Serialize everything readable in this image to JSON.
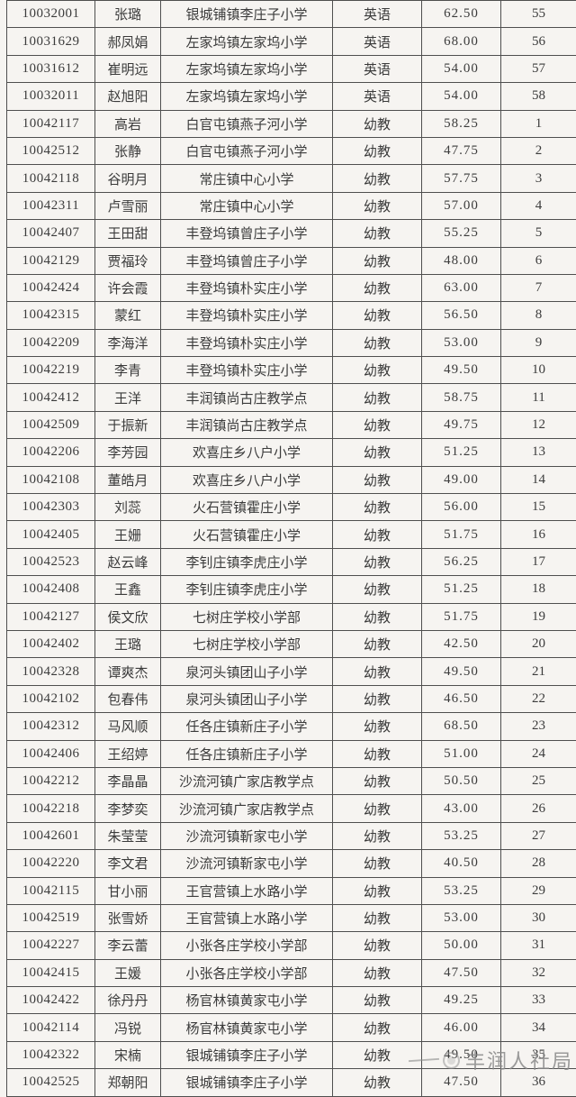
{
  "colors": {
    "background": "#f6f4f1",
    "border": "#4f4f4f",
    "text": "#3b3b3b",
    "watermark": "#8a8a8a"
  },
  "watermark": {
    "text": "丰润人社局",
    "logo": "emblem-icon"
  },
  "table": {
    "column_fields": [
      "exam_number",
      "name",
      "school",
      "subject",
      "score",
      "rank"
    ],
    "rows": [
      [
        "10032001",
        "张璐",
        "银城铺镇李庄子小学",
        "英语",
        "62.50",
        "55"
      ],
      [
        "10031629",
        "郝凤娟",
        "左家坞镇左家坞小学",
        "英语",
        "68.00",
        "56"
      ],
      [
        "10031612",
        "崔明远",
        "左家坞镇左家坞小学",
        "英语",
        "54.00",
        "57"
      ],
      [
        "10032011",
        "赵旭阳",
        "左家坞镇左家坞小学",
        "英语",
        "54.00",
        "58"
      ],
      [
        "10042117",
        "高岩",
        "白官屯镇燕子河小学",
        "幼教",
        "58.25",
        "1"
      ],
      [
        "10042512",
        "张静",
        "白官屯镇燕子河小学",
        "幼教",
        "47.75",
        "2"
      ],
      [
        "10042118",
        "谷明月",
        "常庄镇中心小学",
        "幼教",
        "57.75",
        "3"
      ],
      [
        "10042311",
        "卢雪丽",
        "常庄镇中心小学",
        "幼教",
        "57.00",
        "4"
      ],
      [
        "10042407",
        "王田甜",
        "丰登坞镇曾庄子小学",
        "幼教",
        "55.25",
        "5"
      ],
      [
        "10042129",
        "贾福玲",
        "丰登坞镇曾庄子小学",
        "幼教",
        "48.00",
        "6"
      ],
      [
        "10042424",
        "许会霞",
        "丰登坞镇朴实庄小学",
        "幼教",
        "63.00",
        "7"
      ],
      [
        "10042315",
        "蒙红",
        "丰登坞镇朴实庄小学",
        "幼教",
        "56.50",
        "8"
      ],
      [
        "10042209",
        "李海洋",
        "丰登坞镇朴实庄小学",
        "幼教",
        "53.00",
        "9"
      ],
      [
        "10042219",
        "李青",
        "丰登坞镇朴实庄小学",
        "幼教",
        "49.50",
        "10"
      ],
      [
        "10042412",
        "王洋",
        "丰润镇尚古庄教学点",
        "幼教",
        "58.75",
        "11"
      ],
      [
        "10042509",
        "于振新",
        "丰润镇尚古庄教学点",
        "幼教",
        "49.75",
        "12"
      ],
      [
        "10042206",
        "李芳园",
        "欢喜庄乡八户小学",
        "幼教",
        "51.25",
        "13"
      ],
      [
        "10042108",
        "董皓月",
        "欢喜庄乡八户小学",
        "幼教",
        "49.00",
        "14"
      ],
      [
        "10042303",
        "刘蕊",
        "火石营镇霍庄小学",
        "幼教",
        "56.00",
        "15"
      ],
      [
        "10042405",
        "王姗",
        "火石营镇霍庄小学",
        "幼教",
        "51.75",
        "16"
      ],
      [
        "10042523",
        "赵云峰",
        "李钊庄镇李虎庄小学",
        "幼教",
        "56.25",
        "17"
      ],
      [
        "10042408",
        "王鑫",
        "李钊庄镇李虎庄小学",
        "幼教",
        "51.25",
        "18"
      ],
      [
        "10042127",
        "侯文欣",
        "七树庄学校小学部",
        "幼教",
        "51.75",
        "19"
      ],
      [
        "10042402",
        "王璐",
        "七树庄学校小学部",
        "幼教",
        "42.50",
        "20"
      ],
      [
        "10042328",
        "谭爽杰",
        "泉河头镇团山子小学",
        "幼教",
        "49.50",
        "21"
      ],
      [
        "10042102",
        "包春伟",
        "泉河头镇团山子小学",
        "幼教",
        "46.50",
        "22"
      ],
      [
        "10042312",
        "马风顺",
        "任各庄镇新庄子小学",
        "幼教",
        "68.50",
        "23"
      ],
      [
        "10042406",
        "王绍婷",
        "任各庄镇新庄子小学",
        "幼教",
        "51.00",
        "24"
      ],
      [
        "10042212",
        "李晶晶",
        "沙流河镇广家店教学点",
        "幼教",
        "50.50",
        "25"
      ],
      [
        "10042218",
        "李梦奕",
        "沙流河镇广家店教学点",
        "幼教",
        "43.00",
        "26"
      ],
      [
        "10042601",
        "朱莹莹",
        "沙流河镇靳家屯小学",
        "幼教",
        "53.25",
        "27"
      ],
      [
        "10042220",
        "李文君",
        "沙流河镇靳家屯小学",
        "幼教",
        "40.50",
        "28"
      ],
      [
        "10042115",
        "甘小丽",
        "王官营镇上水路小学",
        "幼教",
        "53.25",
        "29"
      ],
      [
        "10042519",
        "张雪娇",
        "王官营镇上水路小学",
        "幼教",
        "53.00",
        "30"
      ],
      [
        "10042227",
        "李云蕾",
        "小张各庄学校小学部",
        "幼教",
        "50.00",
        "31"
      ],
      [
        "10042415",
        "王媛",
        "小张各庄学校小学部",
        "幼教",
        "47.50",
        "32"
      ],
      [
        "10042422",
        "徐丹丹",
        "杨官林镇黄家屯小学",
        "幼教",
        "49.25",
        "33"
      ],
      [
        "10042114",
        "冯锐",
        "杨官林镇黄家屯小学",
        "幼教",
        "46.00",
        "34"
      ],
      [
        "10042322",
        "宋楠",
        "银城铺镇李庄子小学",
        "幼教",
        "49.50",
        "35"
      ],
      [
        "10042525",
        "郑朝阳",
        "银城铺镇李庄子小学",
        "幼教",
        "47.50",
        "36"
      ]
    ]
  }
}
